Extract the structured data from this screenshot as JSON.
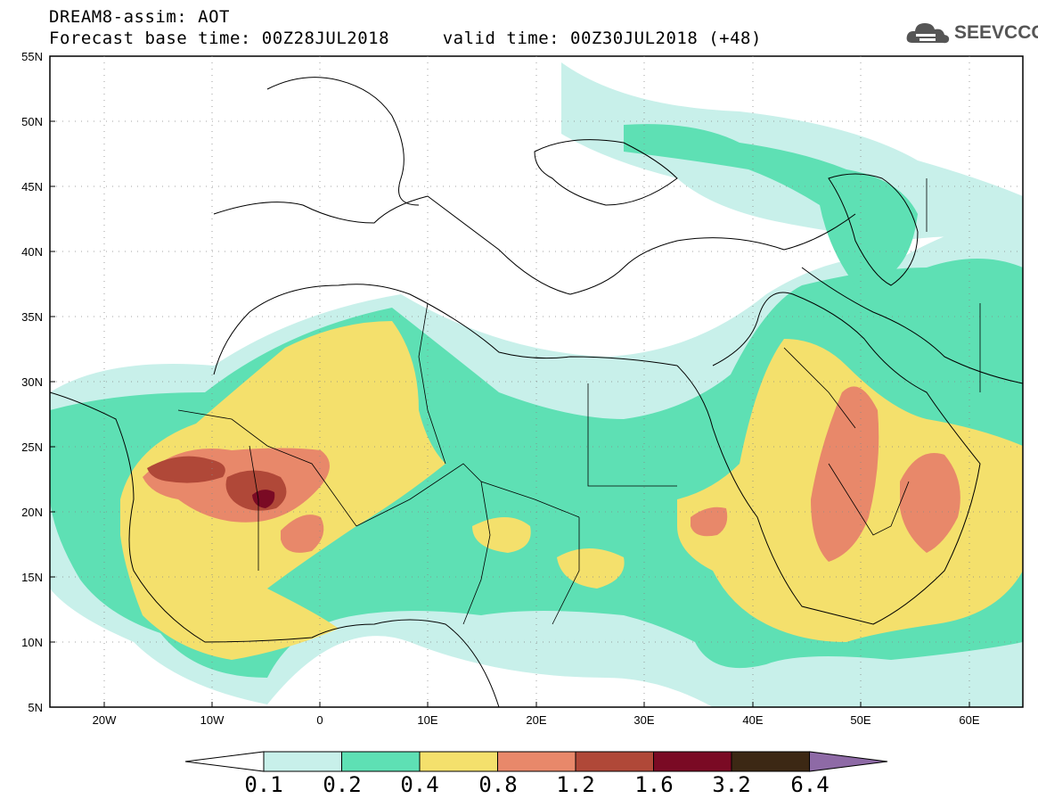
{
  "header": {
    "title_line1": "DREAM8-assim: AOT",
    "title_line2": "Forecast base time: 00Z28JUL2018     valid time: 00Z30JUL2018 (+48)"
  },
  "logo": {
    "text": "SEEVCCC",
    "icon": "cloud-logo-icon"
  },
  "map": {
    "lat_labels": [
      "55N",
      "50N",
      "45N",
      "40N",
      "35N",
      "30N",
      "25N",
      "20N",
      "15N",
      "10N",
      "5N"
    ],
    "lon_labels": [
      "20W",
      "10W",
      "0",
      "10E",
      "20E",
      "30E",
      "40E",
      "50E",
      "60E"
    ]
  },
  "colorbar": {
    "labels": [
      "0.1",
      "0.2",
      "0.4",
      "0.8",
      "1.2",
      "1.6",
      "3.2",
      "6.4"
    ],
    "colors": [
      "#ffffff",
      "#c8f0ea",
      "#5ee0b4",
      "#f4e06c",
      "#e8886a",
      "#b04838",
      "#7a0a24",
      "#3c2814",
      "#8e6aa6"
    ]
  },
  "palette": {
    "ocean": "#ffffff",
    "border": "#000000"
  }
}
